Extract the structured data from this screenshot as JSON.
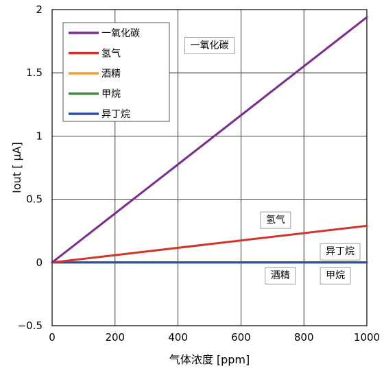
{
  "chart_data": {
    "type": "line",
    "xlabel": "气体浓度 [ppm]",
    "ylabel": "Iout [ μA]",
    "xlim": [
      0,
      1000
    ],
    "ylim": [
      -0.5,
      2
    ],
    "xticks": [
      0,
      200,
      400,
      600,
      800,
      1000
    ],
    "yticks": [
      -0.5,
      0,
      0.5,
      1,
      1.5,
      2
    ],
    "xtick_labels": [
      "0",
      "200",
      "400",
      "600",
      "800",
      "1000"
    ],
    "ytick_labels": [
      "−0.5",
      "0",
      "0.5",
      "1",
      "1.5",
      "2"
    ],
    "grid": true,
    "legend_position": "top-left",
    "series": [
      {
        "name": "一氧化碳",
        "color": "#7b2d8e",
        "x": [
          0,
          1000
        ],
        "y": [
          0,
          1.94
        ]
      },
      {
        "name": "氢气",
        "color": "#d1342b",
        "x": [
          0,
          1000
        ],
        "y": [
          0,
          0.29
        ]
      },
      {
        "name": "酒精",
        "color": "#f0a030",
        "x": [
          0,
          1000
        ],
        "y": [
          0,
          0
        ]
      },
      {
        "name": "甲烷",
        "color": "#3a8a3a",
        "x": [
          0,
          1000
        ],
        "y": [
          0,
          0
        ]
      },
      {
        "name": "异丁烷",
        "color": "#2b4fa8",
        "x": [
          0,
          1000
        ],
        "y": [
          0,
          0
        ]
      }
    ],
    "annotations": [
      {
        "text": "一氧化碳",
        "x": 500,
        "y": 1.72
      },
      {
        "text": "氢气",
        "x": 710,
        "y": 0.34
      },
      {
        "text": "异丁烷",
        "x": 915,
        "y": 0.09
      },
      {
        "text": "酒精",
        "x": 725,
        "y": -0.1
      },
      {
        "text": "甲烷",
        "x": 900,
        "y": -0.1
      }
    ]
  }
}
